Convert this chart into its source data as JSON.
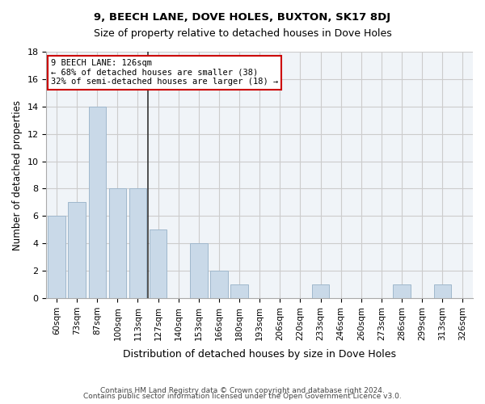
{
  "title1": "9, BEECH LANE, DOVE HOLES, BUXTON, SK17 8DJ",
  "title2": "Size of property relative to detached houses in Dove Holes",
  "xlabel": "Distribution of detached houses by size in Dove Holes",
  "ylabel": "Number of detached properties",
  "categories": [
    "60sqm",
    "73sqm",
    "87sqm",
    "100sqm",
    "113sqm",
    "127sqm",
    "140sqm",
    "153sqm",
    "166sqm",
    "180sqm",
    "193sqm",
    "206sqm",
    "220sqm",
    "233sqm",
    "246sqm",
    "260sqm",
    "273sqm",
    "286sqm",
    "299sqm",
    "313sqm",
    "326sqm"
  ],
  "values": [
    6,
    7,
    14,
    8,
    8,
    5,
    0,
    4,
    2,
    1,
    0,
    0,
    0,
    1,
    0,
    0,
    0,
    1,
    0,
    1,
    0
  ],
  "bar_color": "#c9d9e8",
  "bar_edge_color": "#a0b8cc",
  "highlight_line_index": 5,
  "annotation_text": "9 BEECH LANE: 126sqm\n← 68% of detached houses are smaller (38)\n32% of semi-detached houses are larger (18) →",
  "annotation_box_color": "#ffffff",
  "annotation_box_edge": "#cc0000",
  "vline_color": "#333333",
  "grid_color": "#cccccc",
  "background_color": "#f0f4f8",
  "ylim": [
    0,
    18
  ],
  "yticks": [
    0,
    2,
    4,
    6,
    8,
    10,
    12,
    14,
    16,
    18
  ],
  "footer1": "Contains HM Land Registry data © Crown copyright and database right 2024.",
  "footer2": "Contains public sector information licensed under the Open Government Licence v3.0."
}
